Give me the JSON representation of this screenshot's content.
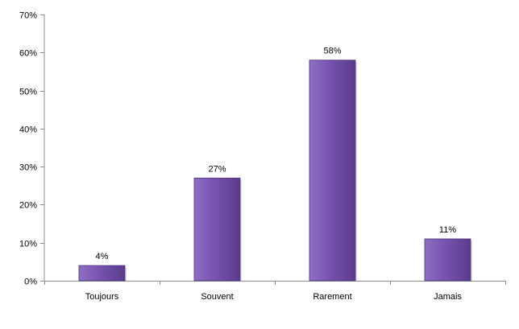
{
  "chart_data": {
    "type": "bar",
    "categories": [
      "Toujours",
      "Souvent",
      "Rarement",
      "Jamais"
    ],
    "values": [
      4,
      27,
      58,
      11
    ],
    "data_labels": [
      "4%",
      "27%",
      "58%",
      "11%"
    ],
    "y_ticks": [
      0,
      10,
      20,
      30,
      40,
      50,
      60,
      70
    ],
    "y_tick_labels": [
      "0%",
      "10%",
      "20%",
      "30%",
      "40%",
      "50%",
      "60%",
      "70%"
    ],
    "ylim": [
      0,
      70
    ],
    "title": "",
    "xlabel": "",
    "ylabel": "",
    "grid": false,
    "legend": "none",
    "colors": {
      "bar_light": "#8e6ec4",
      "bar_mid": "#7653b0",
      "bar_dark": "#5a3c8c",
      "bar_edge": "#4d3478",
      "axis": "#8c8c8c"
    }
  }
}
